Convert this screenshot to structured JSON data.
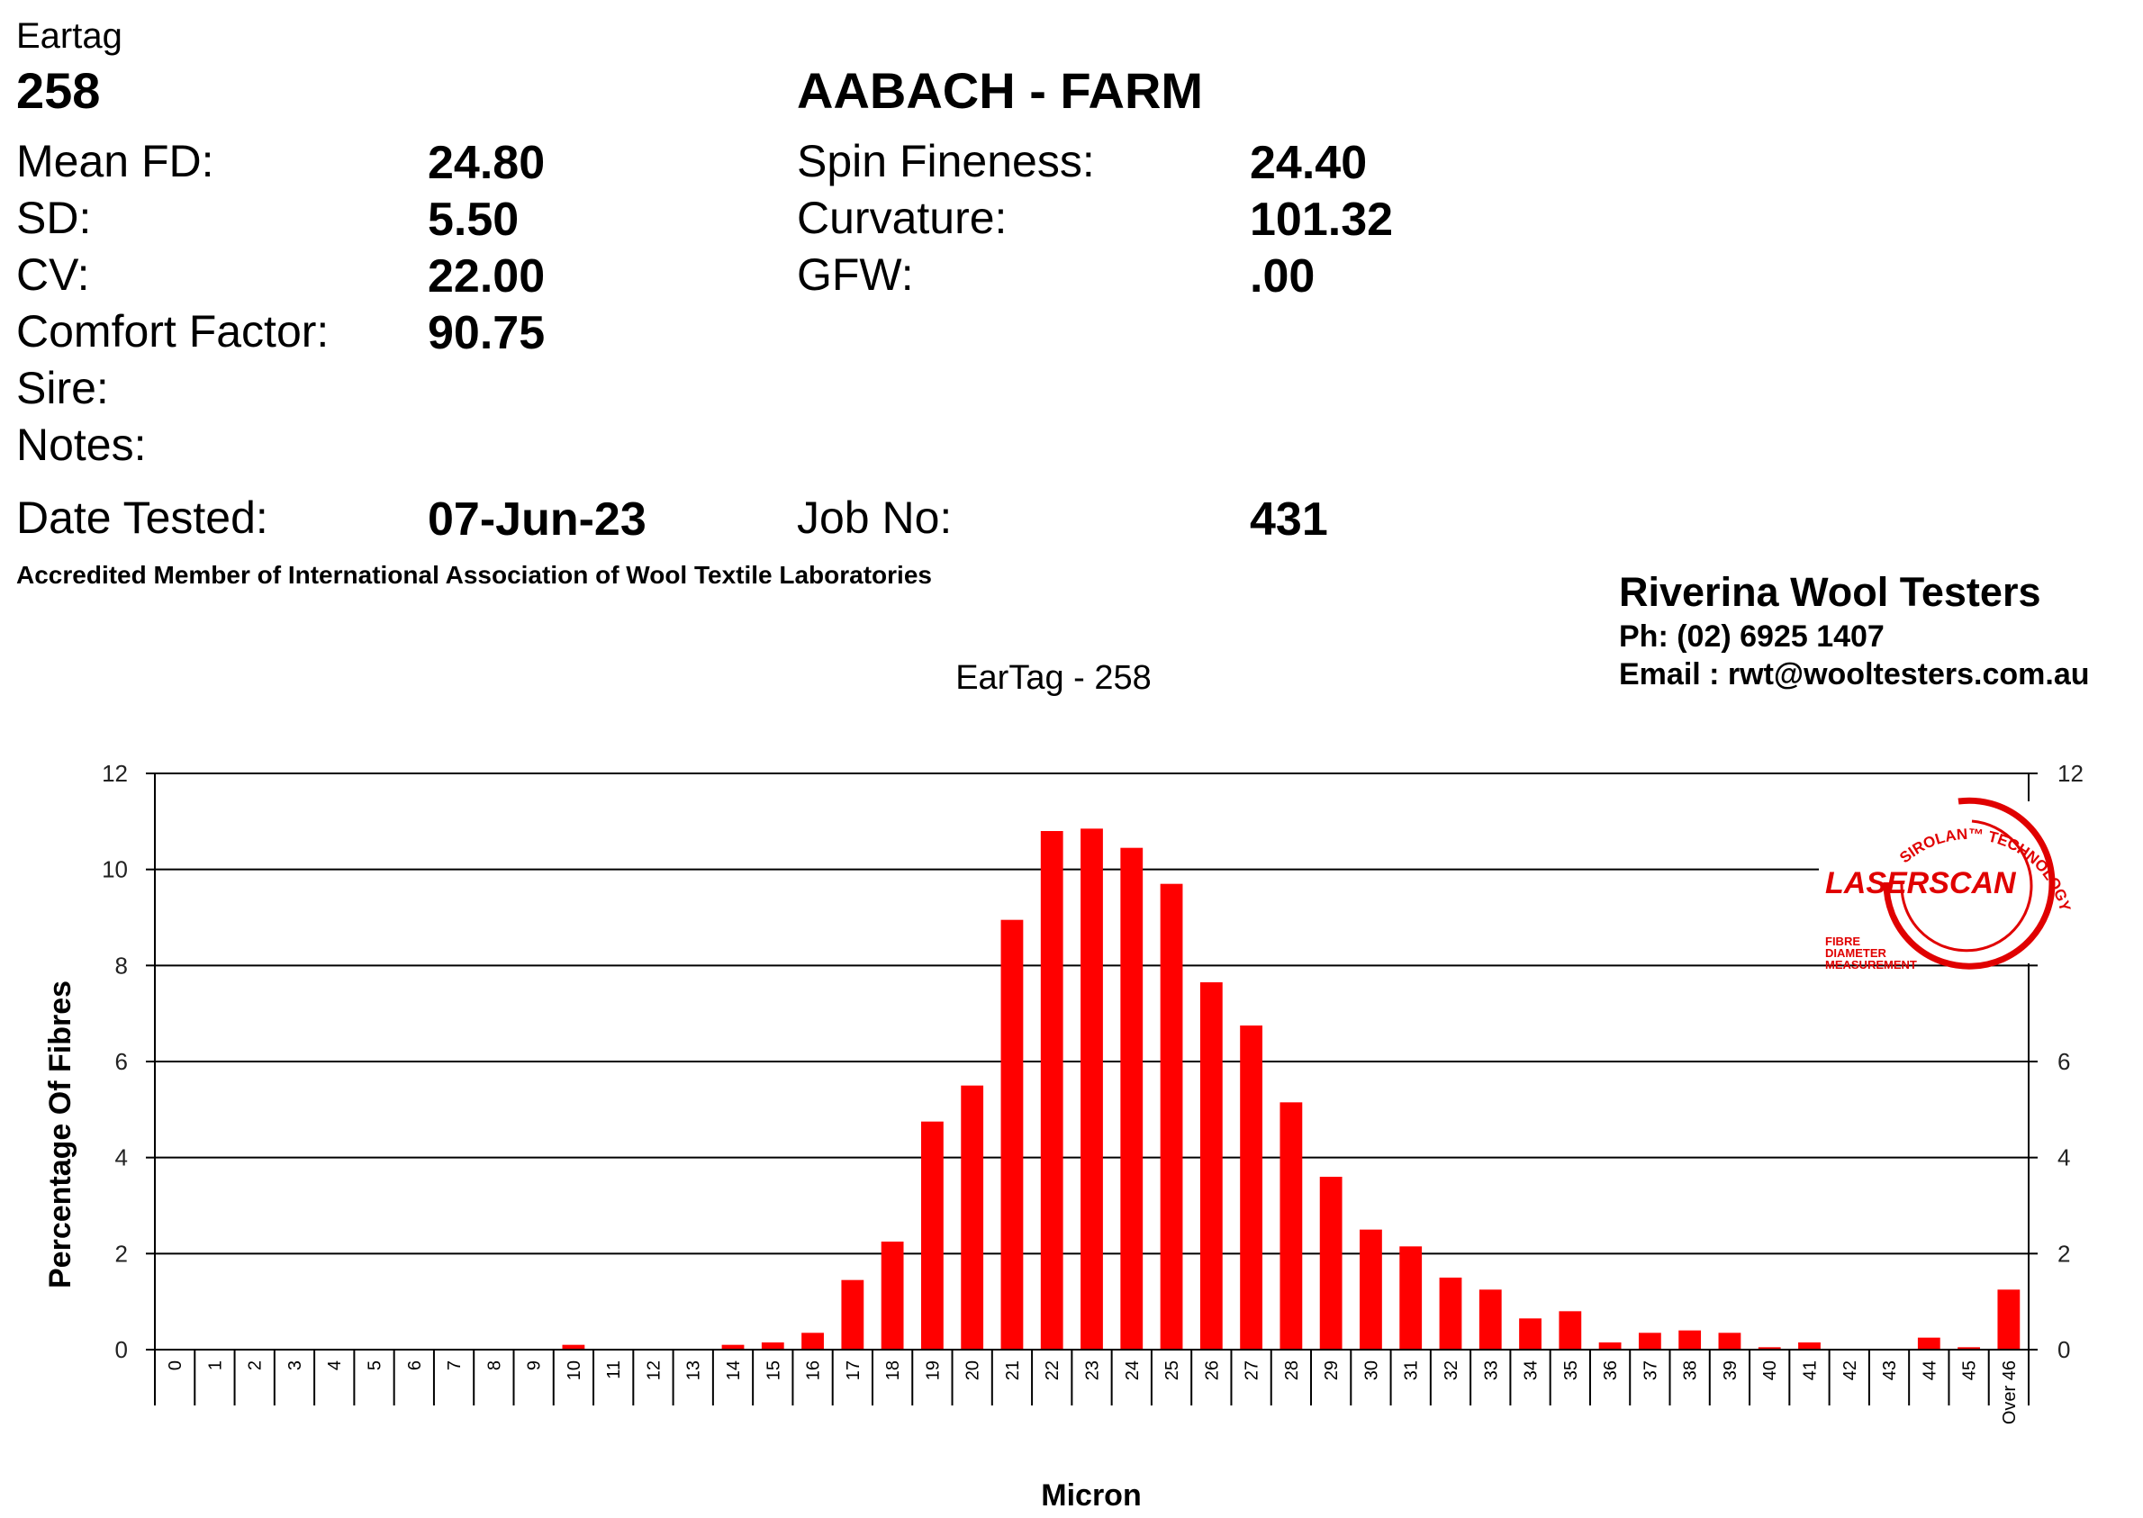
{
  "header": {
    "eartag_label": "Eartag",
    "eartag_value": "258",
    "farm_name": "AABACH - FARM"
  },
  "stats_left": [
    {
      "label": "Mean FD:",
      "value": "24.80"
    },
    {
      "label": "SD:",
      "value": "5.50"
    },
    {
      "label": "CV:",
      "value": "22.00"
    },
    {
      "label": "Comfort Factor:",
      "value": "90.75"
    },
    {
      "label": "Sire:",
      "value": ""
    },
    {
      "label": "Notes:",
      "value": ""
    }
  ],
  "stats_right": [
    {
      "label": "Spin Fineness:",
      "value": "24.40"
    },
    {
      "label": "Curvature:",
      "value": "101.32"
    },
    {
      "label": "GFW:",
      "value": ".00"
    }
  ],
  "test_info": {
    "date_label": "Date Tested:",
    "date_value": "07-Jun-23",
    "job_label": "Job No:",
    "job_value": "431"
  },
  "accreditation": "Accredited Member of International Association of Wool Textile Laboratories",
  "lab": {
    "name": "Riverina Wool Testers",
    "phone": "Ph: (02) 6925 1407",
    "email": "Email : rwt@wooltesters.com.au"
  },
  "logo": {
    "brand": "LASERSCAN",
    "arc_text": "SIROLAN™ TECHNOLOGY",
    "caption_lines": [
      "FIBRE",
      "DIAMETER",
      "MEASUREMENT"
    ],
    "color": "#e00000"
  },
  "chart_data": {
    "type": "bar",
    "title": "EarTag - 258",
    "xlabel": "Micron",
    "ylabel": "Percentage Of Fibres",
    "ylim": [
      0,
      12
    ],
    "yticks": [
      0,
      2,
      4,
      6,
      8,
      10,
      12
    ],
    "right_yticks": [
      "0",
      "2",
      "4",
      "6",
      "",
      "0",
      "12"
    ],
    "grid": true,
    "bar_color": "#ff0000",
    "categories": [
      "0",
      "1",
      "2",
      "3",
      "4",
      "5",
      "6",
      "7",
      "8",
      "9",
      "10",
      "11",
      "12",
      "13",
      "14",
      "15",
      "16",
      "17",
      "18",
      "19",
      "20",
      "21",
      "22",
      "23",
      "24",
      "25",
      "26",
      "27",
      "28",
      "29",
      "30",
      "31",
      "32",
      "33",
      "34",
      "35",
      "36",
      "37",
      "38",
      "39",
      "40",
      "41",
      "42",
      "43",
      "44",
      "45",
      "Over 46"
    ],
    "values": [
      0,
      0,
      0,
      0,
      0,
      0,
      0,
      0,
      0,
      0,
      0.1,
      0,
      0,
      0,
      0.1,
      0.15,
      0.35,
      1.45,
      2.25,
      4.75,
      5.5,
      8.95,
      10.8,
      10.85,
      10.45,
      9.7,
      7.65,
      6.75,
      5.15,
      3.6,
      2.5,
      2.15,
      1.5,
      1.25,
      0.65,
      0.8,
      0.15,
      0.35,
      0.4,
      0.35,
      0.05,
      0.15,
      0,
      0,
      0.25,
      0.05,
      1.25
    ]
  }
}
